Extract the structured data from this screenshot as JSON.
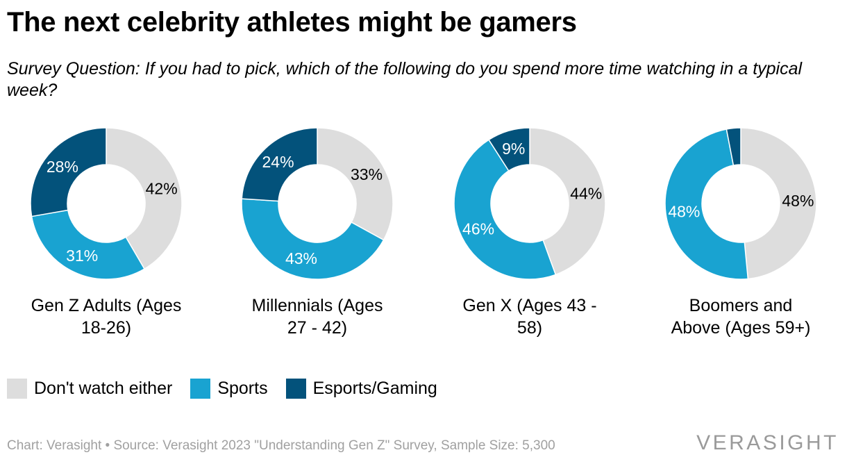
{
  "title": "The next celebrity athletes might be gamers",
  "subtitle": "Survey Question: If you had to pick, which of the following do you spend more time watching in a typical week?",
  "footer": "Chart: Verasight • Source: Verasight 2023 \"Understanding Gen Z\" Survey, Sample Size: 5,300",
  "brand": "VERASIGHT",
  "legend": [
    {
      "name": "Don't watch either",
      "color": "#dddddd"
    },
    {
      "name": "Sports",
      "color": "#19a3d1"
    },
    {
      "name": "Esports/Gaming",
      "color": "#03527b"
    }
  ],
  "chart_data": {
    "type": "pie",
    "variant": "donut",
    "series_names": [
      "Don't watch either",
      "Sports",
      "Esports/Gaming"
    ],
    "colors": [
      "#dddddd",
      "#19a3d1",
      "#03527b"
    ],
    "legend_position": "bottom",
    "charts": [
      {
        "label_lines": [
          "Gen Z Adults (Ages",
          "18-26)"
        ],
        "values": [
          42,
          31,
          28
        ],
        "value_labels": [
          "42%",
          "31%",
          "28%"
        ]
      },
      {
        "label_lines": [
          "Millennials (Ages",
          "27 - 42)"
        ],
        "values": [
          33,
          43,
          24
        ],
        "value_labels": [
          "33%",
          "43%",
          "24%"
        ]
      },
      {
        "label_lines": [
          "Gen X (Ages 43 -",
          "58)"
        ],
        "values": [
          44,
          46,
          9
        ],
        "value_labels": [
          "44%",
          "46%",
          "9%"
        ]
      },
      {
        "label_lines": [
          "Boomers and",
          "Above (Ages 59+)"
        ],
        "values": [
          48,
          48,
          3
        ],
        "value_labels": [
          "48%",
          "48%",
          ""
        ]
      }
    ]
  }
}
